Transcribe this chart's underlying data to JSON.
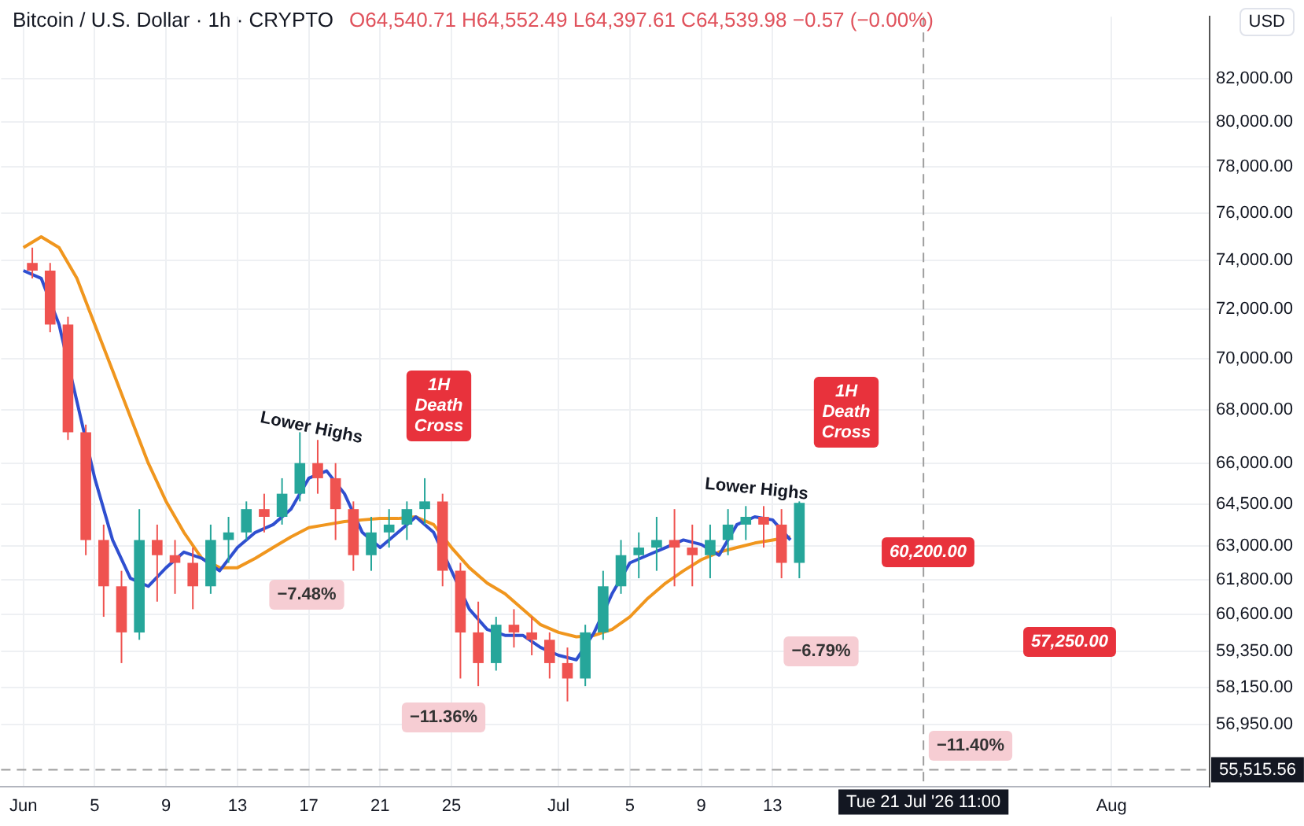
{
  "chart_data": {
    "type": "candlestick",
    "title": "Bitcoin / U.S. Dollar · 1h · CRYPTO",
    "subtitle": "O64,540.71 H64,552.49 L64,397.61 C64,539.98 −0.57 (−0.00%)",
    "ylabel": "USD",
    "x": [
      "2026-06-01T12:00",
      "2026-06-02T12:00",
      "2026-06-03T12:00",
      "2026-06-04T12:00",
      "2026-06-05T12:00",
      "2026-06-06T12:00",
      "2026-06-07T12:00",
      "2026-06-08T12:00",
      "2026-06-09T12:00",
      "2026-06-10T12:00",
      "2026-06-11T12:00",
      "2026-06-12T12:00",
      "2026-06-13T12:00",
      "2026-06-14T12:00",
      "2026-06-15T12:00",
      "2026-06-16T12:00",
      "2026-06-17T12:00",
      "2026-06-18T12:00",
      "2026-06-19T12:00",
      "2026-06-20T12:00",
      "2026-06-21T12:00",
      "2026-06-22T12:00",
      "2026-06-23T12:00",
      "2026-06-24T12:00",
      "2026-06-25T12:00",
      "2026-06-26T12:00",
      "2026-06-27T12:00",
      "2026-06-28T12:00",
      "2026-06-29T12:00",
      "2026-06-30T12:00",
      "2026-07-01T12:00",
      "2026-07-02T12:00",
      "2026-07-03T12:00",
      "2026-07-04T12:00",
      "2026-07-05T12:00",
      "2026-07-06T12:00",
      "2026-07-07T12:00",
      "2026-07-08T12:00",
      "2026-07-09T12:00",
      "2026-07-10T12:00",
      "2026-07-11T12:00",
      "2026-07-12T12:00",
      "2026-07-13T12:00",
      "2026-07-14T12:00"
    ],
    "ohlc": [
      [
        73890,
        74530,
        73250,
        73570
      ],
      [
        73570,
        73890,
        71060,
        71370
      ],
      [
        71370,
        71680,
        66870,
        67160
      ],
      [
        67160,
        67450,
        62660,
        63200
      ],
      [
        63200,
        63750,
        60520,
        61570
      ],
      [
        61570,
        62110,
        58960,
        59990
      ],
      [
        59990,
        64310,
        59740,
        63200
      ],
      [
        63200,
        63750,
        61040,
        62660
      ],
      [
        62660,
        63200,
        61310,
        62390
      ],
      [
        62390,
        62930,
        60780,
        61570
      ],
      [
        61570,
        63750,
        61310,
        63200
      ],
      [
        63200,
        64030,
        62390,
        63470
      ],
      [
        63470,
        64590,
        63200,
        64310
      ],
      [
        64310,
        64870,
        63470,
        64030
      ],
      [
        64030,
        65440,
        63750,
        64870
      ],
      [
        64870,
        67160,
        64590,
        66000
      ],
      [
        66000,
        66870,
        64870,
        65440
      ],
      [
        65440,
        66000,
        63200,
        64310
      ],
      [
        64310,
        64590,
        62110,
        62660
      ],
      [
        62660,
        64030,
        62110,
        63470
      ],
      [
        63470,
        64310,
        62930,
        63750
      ],
      [
        63750,
        64590,
        63200,
        64310
      ],
      [
        64310,
        65440,
        63750,
        64590
      ],
      [
        64590,
        64870,
        61570,
        62110
      ],
      [
        62110,
        62390,
        58450,
        59990
      ],
      [
        59990,
        61040,
        58200,
        58960
      ],
      [
        58960,
        60520,
        58710,
        60250
      ],
      [
        60250,
        60780,
        59480,
        59990
      ],
      [
        59990,
        60520,
        59220,
        59740
      ],
      [
        59740,
        59990,
        58450,
        58960
      ],
      [
        58960,
        59480,
        57700,
        58450
      ],
      [
        58450,
        60250,
        58200,
        59990
      ],
      [
        59990,
        62110,
        59740,
        61570
      ],
      [
        61570,
        63200,
        61310,
        62660
      ],
      [
        62660,
        63470,
        61850,
        62930
      ],
      [
        62930,
        64030,
        62110,
        63200
      ],
      [
        63200,
        64310,
        61570,
        62930
      ],
      [
        62930,
        63750,
        61570,
        62660
      ],
      [
        62660,
        63750,
        61850,
        63200
      ],
      [
        63200,
        64310,
        62660,
        63750
      ],
      [
        63750,
        64420,
        63200,
        64030
      ],
      [
        64030,
        64420,
        62930,
        63750
      ],
      [
        63750,
        64310,
        61850,
        62390
      ],
      [
        62390,
        64590,
        61850,
        64540
      ]
    ],
    "series": [
      {
        "type": "line",
        "color": "#2f4fd0",
        "x": [
          "2026-06-01",
          "2026-06-02",
          "2026-06-03",
          "2026-06-04",
          "2026-06-05",
          "2026-06-06",
          "2026-06-07",
          "2026-06-08",
          "2026-06-09",
          "2026-06-10",
          "2026-06-11",
          "2026-06-12",
          "2026-06-13",
          "2026-06-14",
          "2026-06-15",
          "2026-06-16",
          "2026-06-17",
          "2026-06-18",
          "2026-06-19",
          "2026-06-20",
          "2026-06-21",
          "2026-06-22",
          "2026-06-23",
          "2026-06-24",
          "2026-06-25",
          "2026-06-26",
          "2026-06-27",
          "2026-06-28",
          "2026-06-29",
          "2026-06-30",
          "2026-07-01",
          "2026-07-02",
          "2026-07-03",
          "2026-07-04",
          "2026-07-05",
          "2026-07-06",
          "2026-07-07",
          "2026-07-08",
          "2026-07-09",
          "2026-07-10",
          "2026-07-11",
          "2026-07-12",
          "2026-07-13",
          "2026-07-14"
        ],
        "values": [
          73570,
          73250,
          71370,
          68340,
          65440,
          63200,
          61850,
          61570,
          62220,
          62770,
          62550,
          62110,
          62930,
          63470,
          63750,
          64310,
          65440,
          65710,
          64870,
          63470,
          62930,
          63470,
          64030,
          63470,
          62110,
          60780,
          60090,
          59890,
          59890,
          59480,
          59220,
          59070,
          59990,
          61310,
          62390,
          62660,
          62930,
          63200,
          63040,
          62660,
          63750,
          64030,
          63920,
          63200
        ]
      },
      {
        "type": "line",
        "color": "#f0961e",
        "x": [
          "2026-06-01",
          "2026-06-02",
          "2026-06-03",
          "2026-06-04",
          "2026-06-05",
          "2026-06-06",
          "2026-06-07",
          "2026-06-08",
          "2026-06-09",
          "2026-06-10",
          "2026-06-11",
          "2026-06-12",
          "2026-06-13",
          "2026-06-14",
          "2026-06-15",
          "2026-06-16",
          "2026-06-17",
          "2026-06-18",
          "2026-06-19",
          "2026-06-20",
          "2026-06-21",
          "2026-06-22",
          "2026-06-23",
          "2026-06-24",
          "2026-06-25",
          "2026-06-26",
          "2026-06-27",
          "2026-06-28",
          "2026-06-29",
          "2026-06-30",
          "2026-07-01",
          "2026-07-02",
          "2026-07-03",
          "2026-07-04",
          "2026-07-05",
          "2026-07-06",
          "2026-07-07",
          "2026-07-08",
          "2026-07-09",
          "2026-07-10",
          "2026-07-11",
          "2026-07-12",
          "2026-07-13",
          "2026-07-14"
        ],
        "values": [
          74530,
          74990,
          74530,
          73250,
          71370,
          69540,
          67740,
          66000,
          64590,
          63470,
          62550,
          62220,
          62220,
          62550,
          62930,
          63310,
          63640,
          63750,
          63860,
          63920,
          63970,
          63970,
          64030,
          63750,
          62930,
          62220,
          61680,
          61310,
          60780,
          60250,
          59990,
          59840,
          59890,
          60090,
          60520,
          61150,
          61680,
          62110,
          62500,
          62770,
          62930,
          63090,
          63200,
          63310
        ]
      }
    ],
    "xlim": [
      "2026-05-30T18:00",
      "2026-08-06T12:00"
    ],
    "xticks": [
      {
        "value": "2026-06-01",
        "label": "Jun"
      },
      {
        "value": "2026-06-05",
        "label": "5"
      },
      {
        "value": "2026-06-09",
        "label": "9"
      },
      {
        "value": "2026-06-13",
        "label": "13"
      },
      {
        "value": "2026-06-17",
        "label": "17"
      },
      {
        "value": "2026-06-21",
        "label": "21"
      },
      {
        "value": "2026-06-25",
        "label": "25"
      },
      {
        "value": "2026-07-01",
        "label": "Jul"
      },
      {
        "value": "2026-07-05",
        "label": "5"
      },
      {
        "value": "2026-07-09",
        "label": "9"
      },
      {
        "value": "2026-07-13",
        "label": "13"
      },
      {
        "value": "2026-08-01",
        "label": "Aug"
      }
    ],
    "ylim": [
      55000,
      84900
    ],
    "log": true,
    "yticks": [
      {
        "value": 56950,
        "label": "56,950.00"
      },
      {
        "value": 58150,
        "label": "58,150.00"
      },
      {
        "value": 59350,
        "label": "59,350.00"
      },
      {
        "value": 60600,
        "label": "60,600.00"
      },
      {
        "value": 61800,
        "label": "61,800.00"
      },
      {
        "value": 63000,
        "label": "63,000.00"
      },
      {
        "value": 64500,
        "label": "64,500.00"
      },
      {
        "value": 66000,
        "label": "66,000.00"
      },
      {
        "value": 68000,
        "label": "68,000.00"
      },
      {
        "value": 70000,
        "label": "70,000.00"
      },
      {
        "value": 72000,
        "label": "72,000.00"
      },
      {
        "value": 74000,
        "label": "74,000.00"
      },
      {
        "value": 76000,
        "label": "76,000.00"
      },
      {
        "value": 78000,
        "label": "78,000.00"
      },
      {
        "value": 80000,
        "label": "80,000.00"
      },
      {
        "value": 82000,
        "label": "82,000.00"
      }
    ],
    "grid": true,
    "legend": false,
    "ref_lines": [
      {
        "axis": "x",
        "value": "2026-07-21T11:00",
        "label": "Tue 21 Jul '26 11:00",
        "color": "#9e9e9e",
        "line_style": "dashed"
      },
      {
        "axis": "y",
        "value": 55515.56,
        "label": "55,515.56",
        "color": "#9e9e9e",
        "line_style": "dashed"
      }
    ],
    "annotations": [
      "Lower Highs",
      "1H Death Cross",
      "−7.48%",
      "−11.36%",
      "Lower Highs",
      "1H Death Cross",
      "60,200.00",
      "−6.79%",
      "57,250.00",
      "−11.40%"
    ]
  }
}
